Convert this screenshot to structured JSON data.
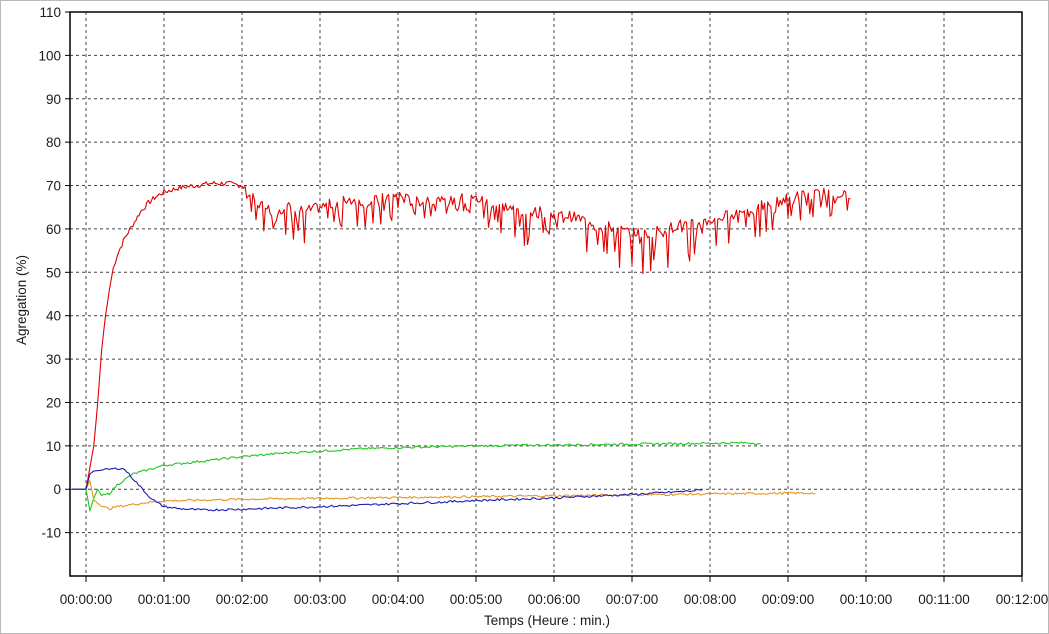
{
  "chart_data": {
    "type": "line",
    "xlabel": "Temps (Heure : min.)",
    "ylabel": "Agregation (%)",
    "xlim": [
      0,
      12
    ],
    "ylim": [
      -20,
      110
    ],
    "x_tick_labels": [
      "00:00:00",
      "00:01:00",
      "00:02:00",
      "00:03:00",
      "00:04:00",
      "00:05:00",
      "00:06:00",
      "00:07:00",
      "00:08:00",
      "00:09:00",
      "00:10:00",
      "00:11:00",
      "00:12:00"
    ],
    "y_ticks": [
      -10,
      0,
      10,
      20,
      30,
      40,
      50,
      60,
      70,
      80,
      90,
      100,
      110
    ],
    "grid": true,
    "series": [
      {
        "color": "#e00000",
        "x": [
          -0.2,
          0,
          0.05,
          0.1,
          0.15,
          0.2,
          0.25,
          0.3,
          0.35,
          0.4,
          0.5,
          0.6,
          0.7,
          0.8,
          0.9,
          1.0,
          1.2,
          1.4,
          1.6,
          1.8,
          2.0,
          2.2,
          2.4,
          2.6,
          2.8,
          3.0,
          3.2,
          3.4,
          3.6,
          3.8,
          4.0,
          4.2,
          4.4,
          4.6,
          4.8,
          5.0,
          5.2,
          5.4,
          5.6,
          5.8,
          6.0,
          6.2,
          6.4,
          6.6,
          6.8,
          7.0,
          7.2,
          7.4,
          7.6,
          7.8,
          8.0,
          8.2,
          8.4,
          8.6,
          8.8,
          9.0,
          9.2,
          9.4,
          9.6,
          9.8
        ],
        "y": [
          0,
          0,
          5,
          10,
          20,
          32,
          40,
          46,
          51,
          54,
          58,
          61,
          64,
          66,
          67.5,
          68.5,
          69.5,
          70,
          70.5,
          70.5,
          70,
          66,
          64,
          65,
          64,
          65,
          66,
          67,
          66,
          67,
          68,
          66,
          67,
          66,
          67,
          67,
          66,
          65,
          64,
          64,
          63,
          63,
          62,
          61,
          60,
          59,
          59,
          60,
          61,
          61,
          62,
          63,
          64,
          65,
          66,
          67,
          68,
          68,
          69,
          67
        ],
        "min_dips": [
          0,
          0,
          0,
          0,
          0,
          0,
          0,
          0,
          0,
          0,
          0,
          0,
          0,
          0,
          0,
          0,
          0,
          0,
          0,
          0,
          0,
          6,
          8,
          8,
          8,
          8,
          8,
          8,
          8,
          8,
          8,
          8,
          8,
          8,
          8,
          8,
          8,
          8,
          8,
          8,
          8,
          9,
          9,
          10,
          11,
          11,
          11,
          10,
          9,
          9,
          8,
          8,
          7,
          7,
          7,
          7,
          6,
          6,
          6,
          5
        ]
      },
      {
        "color": "#1ec81e",
        "x": [
          -0.2,
          0,
          0.05,
          0.1,
          0.15,
          0.2,
          0.3,
          0.4,
          0.6,
          0.8,
          1.0,
          1.5,
          2.0,
          2.5,
          3.0,
          3.5,
          4.0,
          4.5,
          5.0,
          5.5,
          6.0,
          6.5,
          7.0,
          7.5,
          8.0,
          8.5,
          8.65
        ],
        "y": [
          0,
          0,
          -5,
          -2,
          0,
          -1.5,
          -1,
          1,
          3.5,
          4.5,
          5.5,
          6.5,
          7.5,
          8.3,
          8.8,
          9.3,
          9.6,
          9.8,
          10,
          10.1,
          10.2,
          10.3,
          10.4,
          10.5,
          10.6,
          10.7,
          10.5
        ]
      },
      {
        "color": "#e8961e",
        "x": [
          -0.2,
          0,
          0.05,
          0.1,
          0.2,
          0.3,
          0.4,
          0.6,
          0.8,
          1.0,
          1.5,
          2.0,
          2.5,
          3.0,
          3.5,
          4.0,
          4.5,
          5.0,
          5.5,
          6.0,
          6.5,
          7.0,
          7.5,
          8.0,
          8.5,
          9.0,
          9.35
        ],
        "y": [
          0,
          0,
          2,
          -2.5,
          -4,
          -4.5,
          -4,
          -3.5,
          -3,
          -2.7,
          -2.5,
          -2.3,
          -2.2,
          -2.1,
          -2,
          -1.9,
          -1.8,
          -1.7,
          -1.6,
          -1.5,
          -1.4,
          -1.3,
          -1.2,
          -1.1,
          -1.0,
          -0.9,
          -0.9
        ]
      },
      {
        "color": "#1e1eb4",
        "x": [
          -0.2,
          0,
          0.05,
          0.1,
          0.2,
          0.3,
          0.4,
          0.45,
          0.5,
          0.6,
          0.7,
          0.8,
          0.9,
          1.0,
          1.2,
          1.5,
          2.0,
          2.5,
          3.0,
          3.5,
          4.0,
          4.5,
          5.0,
          5.5,
          6.0,
          6.5,
          7.0,
          7.5,
          7.9
        ],
        "y": [
          0,
          0,
          3.5,
          4.2,
          4.4,
          4.6,
          4.8,
          4.8,
          4.5,
          2.5,
          0.5,
          -1.5,
          -3,
          -4,
          -4.5,
          -4.8,
          -4.6,
          -4.3,
          -4,
          -3.7,
          -3.3,
          -3,
          -2.6,
          -2.3,
          -2,
          -1.6,
          -1.2,
          -0.7,
          -0.2
        ]
      }
    ]
  }
}
